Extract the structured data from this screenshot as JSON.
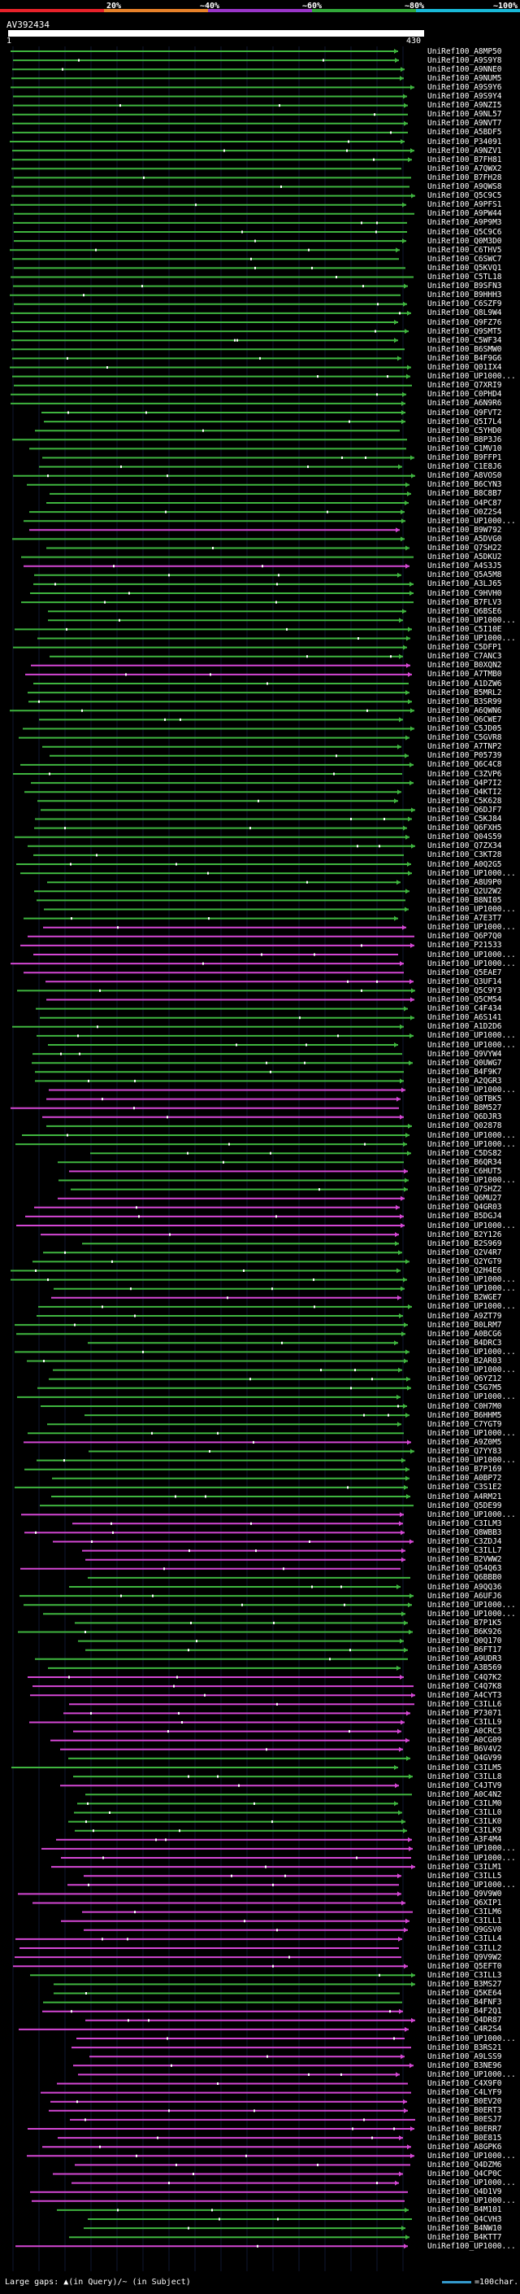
{
  "scale": {
    "ticks": [
      "20%",
      "~40%",
      "~60%",
      "~80%",
      "~100%"
    ],
    "colors": [
      "#e8222a",
      "#e8822a",
      "#9a35c8",
      "#32a83a",
      "#19b9d8"
    ]
  },
  "query": {
    "title": "AV392434",
    "start": "1",
    "end": "430"
  },
  "hits": {
    "labels": [
      "UniRef100_A8MP50",
      "UniRef100_A9S9Y8",
      "UniRef100_A9NNE0",
      "UniRef100_A9NUM5",
      "UniRef100_A9S9Y6",
      "UniRef100_A9S9Y4",
      "UniRef100_A9NZI5",
      "UniRef100_A9NL57",
      "UniRef100_A9NVT7",
      "UniRef100_A5BDF5",
      "UniRef100_P34091",
      "UniRef100_A9NZV1",
      "UniRef100_B7FH81",
      "UniRef100_A7QWX2",
      "UniRef100_B7FH28",
      "UniRef100_A9QWS8",
      "UniRef100_Q5C9C5",
      "UniRef100_A9PFS1",
      "UniRef100_A9PW44",
      "UniRef100_A9P9M3",
      "UniRef100_Q5C9C6",
      "UniRef100_Q0M3D0",
      "UniRef100_C6THV5",
      "UniRef100_C6SWC7",
      "UniRef100_Q5KVQ1",
      "UniRef100_C5TL18",
      "UniRef100_B9SFN3",
      "UniRef100_B9HHH3",
      "UniRef100_C6SZF9",
      "UniRef100_Q8L9W4",
      "UniRef100_Q9FZ76",
      "UniRef100_Q9SMT5",
      "UniRef100_C5WF34",
      "UniRef100_B6SMW0",
      "UniRef100_B4F9G6",
      "UniRef100_Q01IX4",
      "UniRef100_UP1000...",
      "UniRef100_Q7XRI9",
      "UniRef100_C0PHD4",
      "UniRef100_A6N9R6",
      "UniRef100_Q9FVT2",
      "UniRef100_Q5I7L4",
      "UniRef100_C5YHD0",
      "UniRef100_B8P3J6",
      "UniRef100_C1MV10",
      "UniRef100_B9FFP1",
      "UniRef100_C1E8J6",
      "UniRef100_A8VOS0",
      "UniRef100_B6CYN3",
      "UniRef100_B8C8B7",
      "UniRef100_O4PC87",
      "UniRef100_O0Z2S4",
      "UniRef100_UP1000...",
      "UniRef100_B9W792",
      "UniRef100_A5DVG0",
      "UniRef100_Q7SH22",
      "UniRef100_A5DKU2",
      "UniRef100_A4S3J5",
      "UniRef100_Q5A5M8",
      "UniRef100_A3LJ65",
      "UniRef100_C9HVH0",
      "UniRef100_B7FLV3",
      "UniRef100_Q6BSE6",
      "UniRef100_UP1000...",
      "UniRef100_C5I10E",
      "UniRef100_UP1000...",
      "UniRef100_C5DFP1",
      "UniRef100_C7ANC3",
      "UniRef100_B0XQN2",
      "UniRef100_A7TMB0",
      "UniRef100_A1DZW6",
      "UniRef100_B5MRL2",
      "UniRef100_B3SR99",
      "UniRef100_A6QWN6",
      "UniRef100_Q6CWE7",
      "UniRef100_C5JD05",
      "UniRef100_C5GVR8",
      "UniRef100_A7TNP2",
      "UniRef100_P05739",
      "UniRef100_Q6C4C8",
      "UniRef100_C3ZVP6",
      "UniRef100_Q4P7I2",
      "UniRef100_Q4KTI2",
      "UniRef100_C5K628",
      "UniRef100_Q6DJF7",
      "UniRef100_C5KJ84",
      "UniRef100_Q6FXH5",
      "UniRef100_Q04S59",
      "UniRef100_Q7ZX34",
      "UniRef100_C3KT28",
      "UniRef100_A0Q2G5",
      "UniRef100_UP1000...",
      "UniRef100_A8U9P0",
      "UniRef100_Q2U2W2",
      "UniRef100_B8NI05",
      "UniRef100_UP1000...",
      "UniRef100_A7E3T7",
      "UniRef100_UP1000...",
      "UniRef100_Q6P7Q0",
      "UniRef100_P21533",
      "UniRef100_UP1000...",
      "UniRef100_UP1000...",
      "UniRef100_Q5EAE7",
      "UniRef100_Q3UF14",
      "UniRef100_Q5C9Y3",
      "UniRef100_Q5CM54",
      "UniRef100_C4F434",
      "UniRef100_A6S141",
      "UniRef100_A1D2D6",
      "UniRef100_UP1000...",
      "UniRef100_UP1000...",
      "UniRef100_Q9VYW4",
      "UniRef100_Q0UWG7",
      "UniRef100_B4F9K7",
      "UniRef100_A2QGR3",
      "UniRef100_UP1000...",
      "UniRef100_Q8TBK5",
      "UniRef100_B8M527",
      "UniRef100_Q6DJR3",
      "UniRef100_Q02878",
      "UniRef100_UP1000...",
      "UniRef100_UP1000...",
      "UniRef100_C5DS82",
      "UniRef100_B6QR34",
      "UniRef100_C6HUT5",
      "UniRef100_UP1000...",
      "UniRef100_Q7SHZ2",
      "UniRef100_Q6MU27",
      "UniRef100_Q4GR03",
      "UniRef100_B5DGJ4",
      "UniRef100_UP1000...",
      "UniRef100_B2Y126",
      "UniRef100_B2S969",
      "UniRef100_Q2V4R7",
      "UniRef100_Q2YGT9",
      "UniRef100_Q2H4E6",
      "UniRef100_UP1000...",
      "UniRef100_UP1000...",
      "UniRef100_B2WGE7",
      "UniRef100_UP1000...",
      "UniRef100_A9ZT79",
      "UniRef100_B0LRM7",
      "UniRef100_A0BCG6",
      "UniRef100_B4DRC3",
      "UniRef100_UP1000...",
      "UniRef100_B2AR03",
      "UniRef100_UP1000...",
      "UniRef100_Q6YZ12",
      "UniRef100_C5G7M5",
      "UniRef100_UP1000...",
      "UniRef100_C0H7M0",
      "UniRef100_B6HHM5",
      "UniRef100_C7YGT9",
      "UniRef100_UP1000...",
      "UniRef100_A9Z0M5",
      "UniRef100_Q7YY83",
      "UniRef100_UP1000...",
      "UniRef100_B7P169",
      "UniRef100_A0BP72",
      "UniRef100_C3S1E2",
      "UniRef100_A4RM21",
      "UniRef100_Q5DE99",
      "UniRef100_UP1000...",
      "UniRef100_C3ILM3",
      "UniRef100_Q8WBB3",
      "UniRef100_C3ZDJ4",
      "UniRef100_C3ILL7",
      "UniRef100_B2VWW2",
      "UniRef100_Q54Q63",
      "UniRef100_Q6BBB0",
      "UniRef100_A9QQ36",
      "UniRef100_A6UFJ6",
      "UniRef100_UP1000...",
      "UniRef100_UP1000...",
      "UniRef100_B7P1K5",
      "UniRef100_B6K926",
      "UniRef100_Q0Q170",
      "UniRef100_B6FT17",
      "UniRef100_A9UDR3",
      "UniRef100_A3B569",
      "UniRef100_C4Q7K2",
      "UniRef100_C4Q7K8",
      "UniRef100_A4CYT3",
      "UniRef100_C3ILL6",
      "UniRef100_P73071",
      "UniRef100_C3ILL9",
      "UniRef100_A0CRC3",
      "UniRef100_A0CG09",
      "UniRef100_B6V4V2",
      "UniRef100_Q4GV99",
      "UniRef100_C3ILM5",
      "UniRef100_C3ILL8",
      "UniRef100_C4JTV9",
      "UniRef100_A0C4N2",
      "UniRef100_C3ILM0",
      "UniRef100_C3ILL0",
      "UniRef100_C3ILK0",
      "UniRef100_C3ILK9",
      "UniRef100_A3F4M4",
      "UniRef100_UP1000...",
      "UniRef100_UP1000...",
      "UniRef100_C3ILM1",
      "UniRef100_C3ILL5",
      "UniRef100_UP1000...",
      "UniRef100_Q9V9W0",
      "UniRef100_Q6XIP1",
      "UniRef100_C3ILM6",
      "UniRef100_C3ILL1",
      "UniRef100_Q9GSV0",
      "UniRef100_C3ILL4",
      "UniRef100_C3ILL2",
      "UniRef100_Q9V9W2",
      "UniRef100_Q5EFT0",
      "UniRef100_C3ILL3",
      "UniRef100_B3MS27",
      "UniRef100_Q5KE64",
      "UniRef100_B4FNF3",
      "UniRef100_B4F2Q1",
      "UniRef100_Q4DR87",
      "UniRef100_C4R2S4",
      "UniRef100_UP1000...",
      "UniRef100_B3RS21",
      "UniRef100_A9LSS9",
      "UniRef100_B3NE96",
      "UniRef100_UP1000...",
      "UniRef100_C4X9F0",
      "UniRef100_C4LYF9",
      "UniRef100_B0EV20",
      "UniRef100_B0ERT3",
      "UniRef100_B0ESJ7",
      "UniRef100_B0ERR7",
      "UniRef100_B0E815",
      "UniRef100_A8GPK6",
      "UniRef100_UP1000...",
      "UniRef100_Q4DZM6",
      "UniRef100_Q4CP0C",
      "UniRef100_UP1000...",
      "UniRef100_Q4D1V9",
      "UniRef100_UP1000...",
      "UniRef100_B4M101",
      "UniRef100_Q4CVH3",
      "UniRef100_B4NW10",
      "UniRef100_B4KTT7",
      "UniRef100_UP1000..."
    ]
  },
  "legend": {
    "text": "Large gaps: ▲(in Query)/~ (in Subject)",
    "scale": "=100char."
  }
}
